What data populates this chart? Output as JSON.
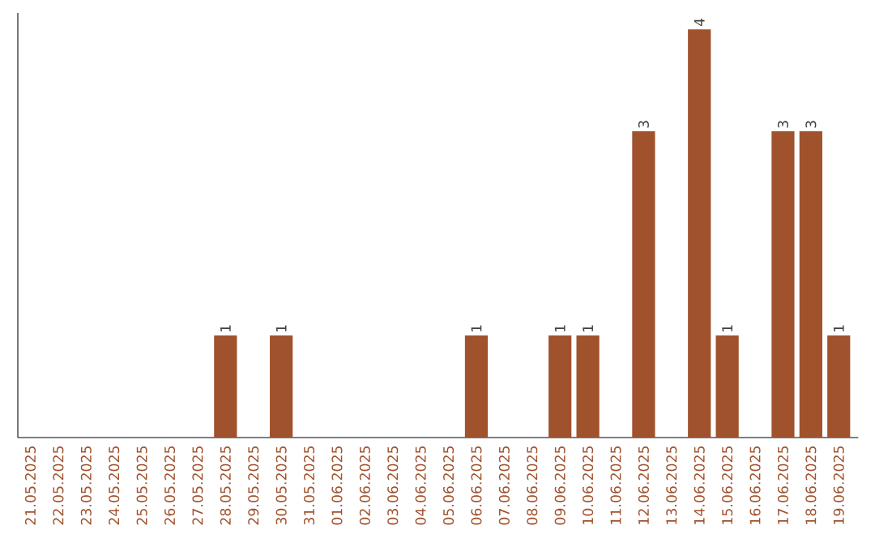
{
  "chart_data": {
    "type": "bar",
    "categories": [
      "21.05.2025",
      "22.05.2025",
      "23.05.2025",
      "24.05.2025",
      "25.05.2025",
      "26.05.2025",
      "27.05.2025",
      "28.05.2025",
      "29.05.2025",
      "30.05.2025",
      "31.05.2025",
      "01.06.2025",
      "02.06.2025",
      "03.06.2025",
      "04.06.2025",
      "05.06.2025",
      "06.06.2025",
      "07.06.2025",
      "08.06.2025",
      "09.06.2025",
      "10.06.2025",
      "11.06.2025",
      "12.06.2025",
      "13.06.2025",
      "14.06.2025",
      "15.06.2025",
      "16.06.2025",
      "17.06.2025",
      "18.06.2025",
      "19.06.2025"
    ],
    "values": [
      0,
      0,
      0,
      0,
      0,
      0,
      0,
      1,
      0,
      1,
      0,
      0,
      0,
      0,
      0,
      0,
      1,
      0,
      0,
      1,
      1,
      0,
      3,
      0,
      4,
      1,
      0,
      3,
      3,
      1
    ],
    "value_labels": [
      null,
      null,
      null,
      null,
      null,
      null,
      null,
      "1",
      null,
      "1",
      null,
      null,
      null,
      null,
      null,
      null,
      "1",
      null,
      null,
      "1",
      "1",
      null,
      "3",
      null,
      "4",
      "1",
      null,
      "3",
      "3",
      "1"
    ],
    "color": "#a0522d",
    "tick_labels": "x"
  }
}
